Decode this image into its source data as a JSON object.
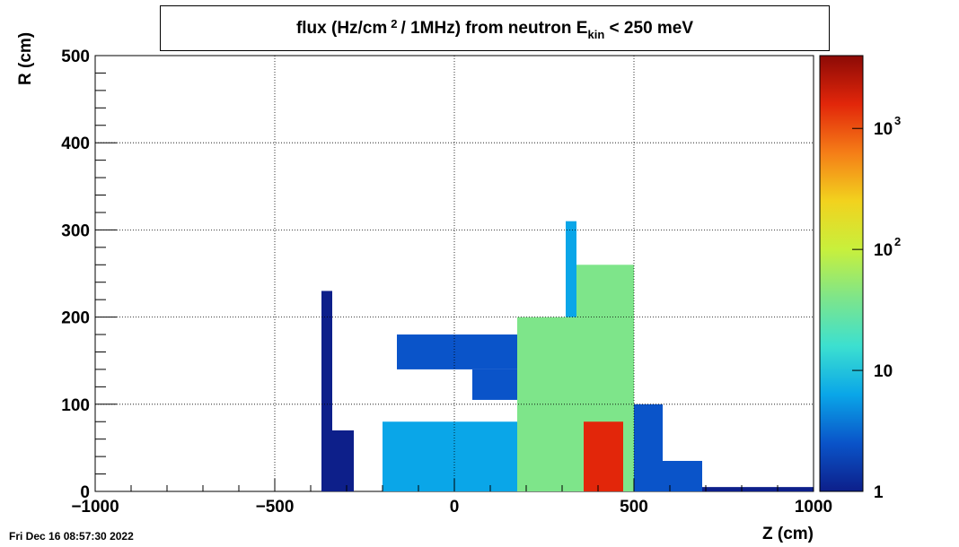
{
  "title": {
    "prefix": "flux (Hz/cm",
    "sup": "2",
    "middle": "/ 1MHz) from   neutron  E",
    "sub": "kin",
    "suffix": " < 250 meV"
  },
  "date_stamp": "Fri Dec 16 08:57:30 2022",
  "chart_data": {
    "type": "heatmap",
    "xlabel": "Z (cm)",
    "ylabel": "R (cm)",
    "xlim": [
      -1000,
      1000
    ],
    "ylim": [
      0,
      500
    ],
    "x_ticks": [
      "−1000",
      "−500",
      "0",
      "500",
      "1000"
    ],
    "y_ticks": [
      "0",
      "100",
      "200",
      "300",
      "400",
      "500"
    ],
    "grid": true,
    "z_scale": "log",
    "z_range": [
      1,
      4000
    ],
    "z_ticks": [
      {
        "value": 1,
        "label": "1"
      },
      {
        "value": 10,
        "label": "10"
      },
      {
        "value": 100,
        "label": "10",
        "exp": "2"
      },
      {
        "value": 1000,
        "label": "10",
        "exp": "3"
      }
    ],
    "colormap": [
      "#0d1f8a",
      "#0a54c9",
      "#0aa6e8",
      "#3ce0d0",
      "#7ee58a",
      "#c8f03c",
      "#f2d21e",
      "#f57d17",
      "#e2260a",
      "#8c0a06"
    ],
    "regions": [
      {
        "name": "left-thin-wall",
        "z": [
          -370,
          -340
        ],
        "r": [
          0,
          230
        ],
        "level": 1.5
      },
      {
        "name": "scatter-left",
        "z": [
          -340,
          -280
        ],
        "r": [
          0,
          70
        ],
        "level": 1.2
      },
      {
        "name": "upper-arm",
        "z": [
          -160,
          175
        ],
        "r": [
          140,
          180
        ],
        "level": 2
      },
      {
        "name": "mid-arm",
        "z": [
          50,
          175
        ],
        "r": [
          105,
          140
        ],
        "level": 3
      },
      {
        "name": "main-body",
        "z": [
          -200,
          340
        ],
        "r": [
          0,
          80
        ],
        "level": 10
      },
      {
        "name": "central-block",
        "z": [
          175,
          340
        ],
        "r": [
          0,
          200
        ],
        "level": 30
      },
      {
        "name": "tall-column",
        "z": [
          310,
          340
        ],
        "r": [
          200,
          310
        ],
        "level": 5
      },
      {
        "name": "core",
        "z": [
          340,
          500
        ],
        "r": [
          0,
          260
        ],
        "level": 60
      },
      {
        "name": "hotspot",
        "z": [
          360,
          470
        ],
        "r": [
          0,
          80
        ],
        "level": 1500
      },
      {
        "name": "right-lobe",
        "z": [
          500,
          580
        ],
        "r": [
          0,
          100
        ],
        "level": 3
      },
      {
        "name": "right-step",
        "z": [
          580,
          690
        ],
        "r": [
          0,
          35
        ],
        "level": 2
      },
      {
        "name": "tail",
        "z": [
          690,
          1000
        ],
        "r": [
          0,
          5
        ],
        "level": 1
      }
    ]
  }
}
